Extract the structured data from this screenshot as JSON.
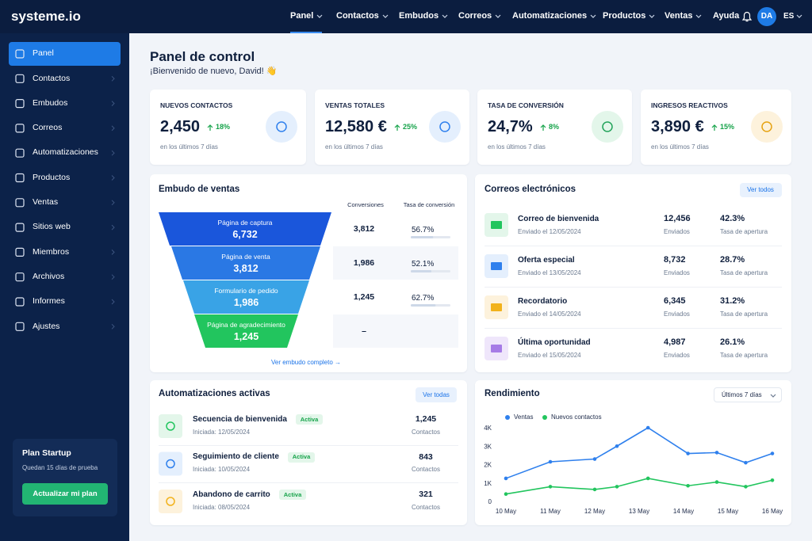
{
  "header": {
    "logo": "systeme.io",
    "nav": [
      "Panel",
      "Contactos",
      "Embudos",
      "Correos",
      "Automatizaciones",
      "Productos",
      "Ventas"
    ],
    "help": "Ayuda",
    "avatar": "DA",
    "lang": "ES"
  },
  "sidebar": {
    "items": [
      "Panel",
      "Contactos",
      "Embudos",
      "Correos",
      "Automatizaciones",
      "Productos",
      "Ventas",
      "Sitios web",
      "Miembros",
      "Archivos",
      "Informes",
      "Ajustes"
    ],
    "plan": {
      "title": "Plan Startup",
      "subtitle": "Quedan 15 días de prueba",
      "button": "Actualizar mi plan"
    }
  },
  "page": {
    "title": "Panel de control",
    "welcome": "¡Bienvenido de nuevo, David! 👋"
  },
  "stats": [
    {
      "label": "NUEVOS CONTACTOS",
      "value": "2,450",
      "change": "18%",
      "period": "en los últimos 7 días"
    },
    {
      "label": "VENTAS TOTALES",
      "value": "12,580 €",
      "change": "25%",
      "period": "en los últimos 7 días"
    },
    {
      "label": "TASA DE CONVERSIÓN",
      "value": "24,7%",
      "change": "8%",
      "period": "en los últimos 7 días"
    },
    {
      "label": "INGRESOS REACTIVOS",
      "value": "3,890 €",
      "change": "15%",
      "period": "en los últimos 7 días"
    }
  ],
  "funnel": {
    "title": "Embudo de ventas",
    "columns": [
      "Conversiones",
      "Tasa de conversión"
    ],
    "stages": [
      {
        "name": "Página de captura",
        "value": "6,732",
        "conversions": "3,812",
        "rate": "56.7%"
      },
      {
        "name": "Página de venta",
        "value": "3,812",
        "conversions": "1,986",
        "rate": "52.1%"
      },
      {
        "name": "Formulario de pedido",
        "value": "1,986",
        "conversions": "1,245",
        "rate": "62.7%"
      },
      {
        "name": "Página de agradecimiento",
        "value": "1,245",
        "conversions": "–"
      }
    ],
    "link": "Ver embudo completo →"
  },
  "emails": {
    "title": "Correos electrónicos",
    "button": "Ver todos",
    "items": [
      {
        "name": "Correo de bienvenida",
        "date": "Enviado el 12/05/2024",
        "sent": "12,456",
        "sent_label": "Enviados",
        "rate": "42.3%",
        "rate_label": "Tasa de apertura"
      },
      {
        "name": "Oferta especial",
        "date": "Enviado el 13/05/2024",
        "sent": "8,732",
        "sent_label": "Enviados",
        "rate": "28.7%",
        "rate_label": "Tasa de apertura"
      },
      {
        "name": "Recordatorio",
        "date": "Enviado el 14/05/2024",
        "sent": "6,345",
        "sent_label": "Enviados",
        "rate": "31.2%",
        "rate_label": "Tasa de apertura"
      },
      {
        "name": "Última oportunidad",
        "date": "Enviado el 15/05/2024",
        "sent": "4,987",
        "sent_label": "Enviados",
        "rate": "26.1%",
        "rate_label": "Tasa de apertura"
      }
    ]
  },
  "automations": {
    "title": "Automatizaciones activas",
    "button": "Ver todas",
    "items": [
      {
        "name": "Secuencia de bienvenida",
        "status": "Activa",
        "date": "Iniciada: 12/05/2024",
        "count": "1,245",
        "count_label": "Contactos"
      },
      {
        "name": "Seguimiento de cliente",
        "status": "Activa",
        "date": "Iniciada: 10/05/2024",
        "count": "843",
        "count_label": "Contactos"
      },
      {
        "name": "Abandono de carrito",
        "status": "Activa",
        "date": "Iniciada: 08/05/2024",
        "count": "321",
        "count_label": "Contactos"
      }
    ]
  },
  "chart_data": {
    "type": "line",
    "title": "Rendimiento",
    "range": "Últimos 7 días",
    "x": [
      0,
      1,
      2,
      2.5,
      3.2,
      4.1,
      4.75,
      5.4,
      6
    ],
    "xlim": [
      0,
      6
    ],
    "xticks": [
      {
        "value": 0,
        "label": "10 May"
      },
      {
        "value": 1,
        "label": "11 May"
      },
      {
        "value": 2,
        "label": "12 May"
      },
      {
        "value": 3,
        "label": "13 May"
      },
      {
        "value": 4,
        "label": "14 May"
      },
      {
        "value": 5,
        "label": "15 May"
      },
      {
        "value": 6,
        "label": "16 May"
      }
    ],
    "ylim": [
      0,
      4200
    ],
    "yticks": [
      0,
      {
        "value": 1000,
        "label": "1K"
      },
      {
        "value": 2000,
        "label": "2K"
      },
      {
        "value": 3000,
        "label": "3K"
      },
      {
        "value": 4000,
        "label": "4K"
      }
    ],
    "grid": false,
    "series": [
      {
        "name": "Ventas",
        "color": "#2f80ed",
        "values": [
          1250,
          2150,
          2300,
          3000,
          4000,
          2600,
          2650,
          2100,
          2600
        ]
      },
      {
        "name": "Nuevos contactos",
        "color": "#22c55e",
        "values": [
          400,
          800,
          650,
          800,
          1250,
          850,
          1050,
          800,
          1150
        ]
      }
    ]
  }
}
